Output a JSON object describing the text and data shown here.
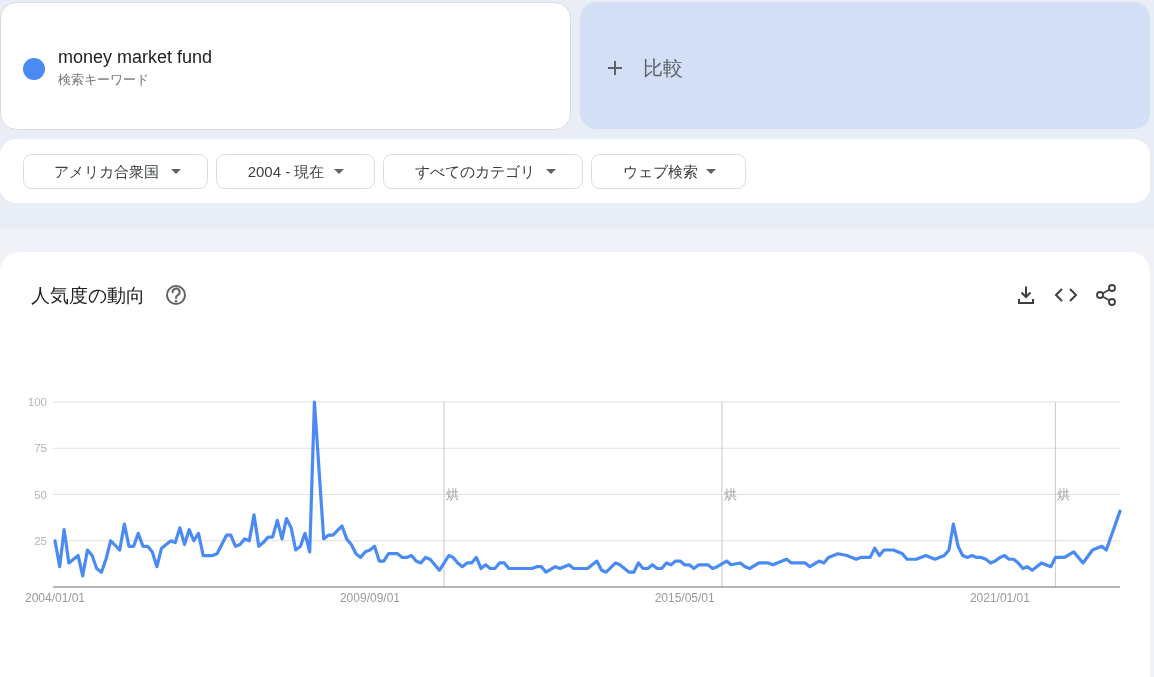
{
  "chart_data": {
    "type": "line",
    "title": "人気度の動向",
    "series": [
      {
        "name": "money market fund",
        "color": "#4a8af4",
        "x": [
          "2004-01",
          "2004-02",
          "2004-03",
          "2004-04",
          "2004-06",
          "2004-07",
          "2004-08",
          "2004-09",
          "2004-10",
          "2004-11",
          "2004-12",
          "2005-01",
          "2005-03",
          "2005-04",
          "2005-05",
          "2005-06",
          "2005-07",
          "2005-08",
          "2005-09",
          "2005-10",
          "2005-11",
          "2005-12",
          "2006-02",
          "2006-03",
          "2006-04",
          "2006-05",
          "2006-06",
          "2006-07",
          "2006-08",
          "2006-09",
          "2006-11",
          "2006-12",
          "2007-02",
          "2007-03",
          "2007-04",
          "2007-05",
          "2007-06",
          "2007-07",
          "2007-08",
          "2007-09",
          "2007-10",
          "2007-11",
          "2007-12",
          "2008-01",
          "2008-02",
          "2008-03",
          "2008-04",
          "2008-05",
          "2008-06",
          "2008-07",
          "2008-08",
          "2008-09",
          "2008-11",
          "2008-12",
          "2009-01",
          "2009-03",
          "2009-04",
          "2009-05",
          "2009-06",
          "2009-07",
          "2009-08",
          "2009-09",
          "2009-10",
          "2009-11",
          "2009-12",
          "2010-01",
          "2010-03",
          "2010-04",
          "2010-05",
          "2010-06",
          "2010-07",
          "2010-08",
          "2010-09",
          "2010-10",
          "2010-11",
          "2010-12",
          "2011-02",
          "2011-03",
          "2011-04",
          "2011-05",
          "2011-06",
          "2011-07",
          "2011-08",
          "2011-09",
          "2011-10",
          "2011-11",
          "2011-12",
          "2012-01",
          "2012-02",
          "2012-03",
          "2012-08",
          "2012-09",
          "2012-10",
          "2012-11",
          "2013-01",
          "2013-02",
          "2013-04",
          "2013-05",
          "2013-08",
          "2013-10",
          "2013-11",
          "2013-12",
          "2014-02",
          "2014-03",
          "2014-05",
          "2014-06",
          "2014-07",
          "2014-08",
          "2014-09",
          "2014-10",
          "2014-11",
          "2014-12",
          "2015-01",
          "2015-02",
          "2015-03",
          "2015-04",
          "2015-05",
          "2015-06",
          "2015-07",
          "2015-08",
          "2015-10",
          "2015-11",
          "2015-12",
          "2016-02",
          "2016-03",
          "2016-05",
          "2016-06",
          "2016-07",
          "2016-09",
          "2016-11",
          "2016-12",
          "2017-03",
          "2017-04",
          "2017-07",
          "2017-08",
          "2017-10",
          "2017-11",
          "2017-12",
          "2018-02",
          "2018-04",
          "2018-06",
          "2018-07",
          "2018-09",
          "2018-10",
          "2018-11",
          "2018-12",
          "2019-02",
          "2019-04",
          "2019-05",
          "2019-07",
          "2019-09",
          "2019-11",
          "2020-01",
          "2020-02",
          "2020-03",
          "2020-04",
          "2020-05",
          "2020-06",
          "2020-07",
          "2020-08",
          "2020-09",
          "2020-10",
          "2020-11",
          "2020-12",
          "2021-01",
          "2021-02",
          "2021-03",
          "2021-04",
          "2021-05",
          "2021-06",
          "2021-07",
          "2021-08",
          "2021-10",
          "2021-12",
          "2022-01",
          "2022-03",
          "2022-05",
          "2022-07",
          "2022-09",
          "2022-11",
          "2022-12",
          "2023-03"
        ],
        "values": [
          25,
          11,
          31,
          13,
          17,
          6,
          20,
          17,
          10,
          8,
          15,
          25,
          20,
          34,
          22,
          22,
          29,
          22,
          22,
          19,
          11,
          21,
          25,
          24,
          32,
          23,
          31,
          25,
          29,
          17,
          17,
          18,
          28,
          28,
          22,
          23,
          26,
          25,
          39,
          22,
          24,
          27,
          27,
          36,
          26,
          37,
          32,
          20,
          22,
          29,
          19,
          100,
          26,
          28,
          28,
          33,
          26,
          23,
          18,
          16,
          19,
          20,
          22,
          14,
          14,
          18,
          18,
          16,
          16,
          17,
          14,
          13,
          16,
          15,
          12,
          9,
          17,
          16,
          13,
          11,
          13,
          13,
          16,
          10,
          12,
          10,
          10,
          13,
          13,
          10,
          10,
          11,
          11,
          8,
          11,
          10,
          12,
          10,
          10,
          14,
          9,
          8,
          13,
          12,
          8,
          8,
          13,
          10,
          10,
          12,
          10,
          10,
          13,
          12,
          14,
          14,
          12,
          12,
          10,
          12,
          12,
          10,
          11,
          14,
          12,
          13,
          11,
          10,
          13,
          13,
          12,
          15,
          13,
          13,
          11,
          14,
          13,
          16,
          18,
          17,
          15,
          16,
          16,
          21,
          17,
          20,
          20,
          18,
          15,
          15,
          17,
          15,
          17,
          20,
          34,
          22,
          17,
          16,
          17,
          16,
          16,
          15,
          13,
          14,
          16,
          17,
          15,
          15,
          13,
          10,
          11,
          9,
          13,
          11,
          16,
          16,
          19,
          13,
          20,
          22,
          20,
          41
        ]
      }
    ],
    "xlim": [
      "2004-01",
      "2023-03"
    ],
    "xticks": [
      {
        "value": "2004-01-01",
        "label": "2004/01/01"
      },
      {
        "value": "2009-09-01",
        "label": "2009/09/01"
      },
      {
        "value": "2015-05-01",
        "label": "2015/05/01"
      },
      {
        "value": "2021-01-01",
        "label": "2021/01/01"
      }
    ],
    "ylim": [
      0,
      100
    ],
    "yticks": [
      25,
      50,
      75,
      100
    ],
    "grid": "y",
    "legend": "top left",
    "ref_lines": [
      {
        "axis": "x",
        "value": "2011-01-01",
        "label": "烘",
        "color": "#d0d0d0"
      },
      {
        "axis": "x",
        "value": "2016-01-01",
        "label": "烘",
        "color": "#d0d0d0"
      },
      {
        "axis": "x",
        "value": "2022-01-01",
        "label": "烘",
        "color": "#d0d0d0"
      }
    ],
    "annotations": [
      "検索キーワード",
      "比較",
      "アメリカ合衆国",
      "2004 - 現在",
      "すべてのカテゴリ",
      "ウェブ検索"
    ]
  }
}
